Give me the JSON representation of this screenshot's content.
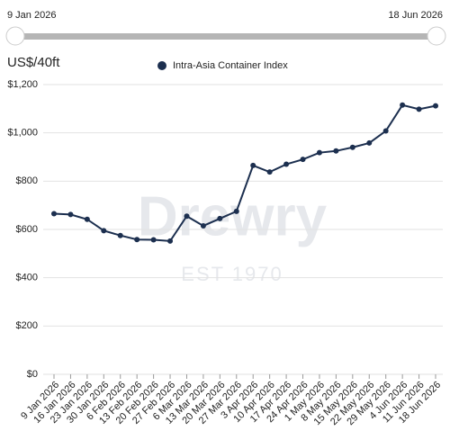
{
  "slider": {
    "start_label": "9 Jan 2026",
    "end_label": "18 Jun 2026"
  },
  "chart_data": {
    "type": "line",
    "y_label": "US$/40ft",
    "watermark": {
      "name": "Drewry",
      "tagline": "EST 1970"
    },
    "categories": [
      "9 Jan 2026",
      "16 Jan 2026",
      "23 Jan 2026",
      "30 Jan 2026",
      "6 Feb 2026",
      "13 Feb 2026",
      "20 Feb 2026",
      "27 Feb 2026",
      "6 Mar 2026",
      "13 Mar 2026",
      "20 Mar 2026",
      "27 Mar 2026",
      "3 Apr 2026",
      "10 Apr 2026",
      "17 Apr 2026",
      "24 Apr 2026",
      "1 May 2026",
      "8 May 2026",
      "15 May 2026",
      "22 May 2026",
      "29 May 2026",
      "4 Jun 2026",
      "11 Jun 2026",
      "18 Jun 2026"
    ],
    "series": [
      {
        "name": "Intra-Asia Container Index",
        "color": "#1c2f4f",
        "values": [
          665,
          662,
          642,
          595,
          575,
          558,
          557,
          552,
          655,
          615,
          645,
          675,
          865,
          838,
          870,
          890,
          918,
          925,
          940,
          958,
          1008,
          1115,
          1098,
          1112
        ]
      }
    ],
    "ylim": [
      0,
      1200
    ],
    "yticks": [
      {
        "value": 0,
        "label": "$0"
      },
      {
        "value": 200,
        "label": "$200"
      },
      {
        "value": 400,
        "label": "$400"
      },
      {
        "value": 600,
        "label": "$600"
      },
      {
        "value": 800,
        "label": "$800"
      },
      {
        "value": 1000,
        "label": "$1,000"
      },
      {
        "value": 1200,
        "label": "$1,200"
      }
    ],
    "grid": true,
    "legend": "top"
  }
}
